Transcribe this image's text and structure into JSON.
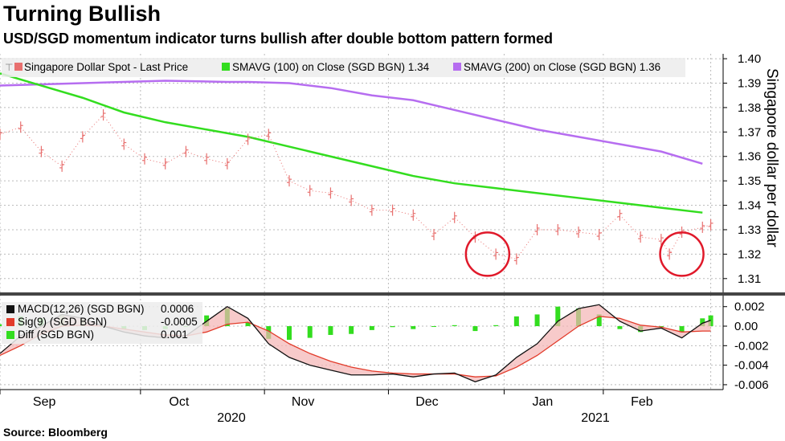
{
  "title": "Turning Bullish",
  "subtitle": "USD/SGD momentum indicator turns bullish after double bottom pattern formed",
  "source": "Source: Bloomberg",
  "colors": {
    "price": "#e8706f",
    "sma100": "#33dd1f",
    "sma200": "#b66df0",
    "macd": "#111111",
    "signal": "#e23b2a",
    "diff": "#33dd1f",
    "circle": "#e0192a"
  },
  "chart_data": [
    {
      "type": "line",
      "panel": "price",
      "ylabel": "Singapore dollar per dollar",
      "ylim": [
        1.305,
        1.402
      ],
      "yticks": [
        "1.40",
        "1.39",
        "1.38",
        "1.37",
        "1.36",
        "1.35",
        "1.34",
        "1.33",
        "1.32",
        "1.31"
      ],
      "xlim": [
        0,
        175
      ],
      "legend": [
        "Singapore Dollar Spot - Last Price",
        "SMAVG (100)  on Close (SGD BGN) 1.34",
        "SMAVG (200)  on Close (SGD BGN) 1.36"
      ],
      "series": [
        {
          "name": "Singapore Dollar Spot - Last Price",
          "style": "ohlc",
          "x": [
            0,
            5,
            10,
            15,
            20,
            25,
            30,
            35,
            40,
            45,
            50,
            55,
            60,
            65,
            70,
            75,
            80,
            85,
            90,
            95,
            100,
            105,
            110,
            115,
            120,
            125,
            130,
            135,
            140,
            145,
            150,
            155,
            160,
            162,
            165,
            170,
            172
          ],
          "y": [
            1.369,
            1.372,
            1.362,
            1.356,
            1.368,
            1.377,
            1.365,
            1.359,
            1.357,
            1.362,
            1.359,
            1.357,
            1.367,
            1.369,
            1.35,
            1.346,
            1.345,
            1.342,
            1.338,
            1.338,
            1.336,
            1.328,
            1.335,
            1.327,
            1.32,
            1.318,
            1.33,
            1.33,
            1.329,
            1.328,
            1.336,
            1.327,
            1.326,
            1.32,
            1.329,
            1.331,
            1.332
          ]
        },
        {
          "name": "SMAVG (100)  on Close (SGD BGN) 1.34",
          "style": "line",
          "x": [
            0,
            10,
            20,
            30,
            40,
            50,
            60,
            70,
            80,
            90,
            100,
            110,
            120,
            130,
            140,
            150,
            160,
            170
          ],
          "y": [
            1.394,
            1.389,
            1.384,
            1.378,
            1.374,
            1.371,
            1.368,
            1.364,
            1.36,
            1.356,
            1.352,
            1.349,
            1.347,
            1.345,
            1.343,
            1.341,
            1.339,
            1.337
          ]
        },
        {
          "name": "SMAVG (200)  on Close (SGD BGN) 1.36",
          "style": "line",
          "x": [
            0,
            20,
            40,
            55,
            60,
            70,
            80,
            90,
            100,
            110,
            120,
            130,
            140,
            150,
            160,
            170
          ],
          "y": [
            1.389,
            1.39,
            1.391,
            1.3905,
            1.3905,
            1.39,
            1.388,
            1.385,
            1.383,
            1.379,
            1.375,
            1.371,
            1.368,
            1.365,
            1.362,
            1.357
          ]
        }
      ],
      "annotations": [
        {
          "type": "circle",
          "x": 118,
          "y": 1.32
        },
        {
          "type": "circle",
          "x": 165,
          "y": 1.32
        }
      ]
    },
    {
      "type": "line",
      "panel": "macd",
      "ylim": [
        -0.0065,
        0.0028
      ],
      "yticks": [
        "0.002",
        "0.00",
        "-0.002",
        "-0.004",
        "-0.006"
      ],
      "x_tick_labels": [
        "Sep",
        "Oct",
        "Nov",
        "Dec",
        "Jan",
        "Feb"
      ],
      "x_year_labels": [
        "2020",
        "2021"
      ],
      "legend": [
        {
          "name": "MACD(12,26) (SGD BGN)",
          "value": "0.0006"
        },
        {
          "name": "Sig(9) (SGD BGN)",
          "value": "-0.0005"
        },
        {
          "name": "Diff (SGD BGN)",
          "value": "0.001"
        }
      ],
      "series": [
        {
          "name": "MACD(12,26) (SGD BGN)",
          "x": [
            0,
            5,
            10,
            15,
            20,
            25,
            30,
            35,
            40,
            45,
            50,
            55,
            60,
            65,
            70,
            75,
            80,
            85,
            90,
            95,
            100,
            105,
            110,
            115,
            120,
            125,
            130,
            135,
            140,
            145,
            150,
            155,
            160,
            165,
            170,
            172
          ],
          "y": [
            -0.0028,
            -0.001,
            0.0,
            0.0012,
            0.0008,
            0.0,
            -0.0006,
            -0.001,
            -0.0012,
            -0.001,
            0.0005,
            0.002,
            0.0008,
            -0.0018,
            -0.0032,
            -0.004,
            -0.0045,
            -0.005,
            -0.005,
            -0.0049,
            -0.0052,
            -0.0049,
            -0.0048,
            -0.0057,
            -0.005,
            -0.0032,
            -0.0018,
            0.0005,
            0.0018,
            0.0022,
            0.0005,
            -0.0005,
            -0.0002,
            -0.0012,
            0.0003,
            0.0006
          ]
        },
        {
          "name": "Sig(9) (SGD BGN)",
          "x": [
            0,
            5,
            10,
            15,
            20,
            25,
            30,
            35,
            40,
            45,
            50,
            55,
            60,
            65,
            70,
            75,
            80,
            85,
            90,
            95,
            100,
            105,
            110,
            115,
            120,
            125,
            130,
            135,
            140,
            145,
            150,
            155,
            160,
            165,
            170,
            172
          ],
          "y": [
            -0.003,
            -0.002,
            -0.0008,
            0.0,
            0.0001,
            0.0,
            -0.0003,
            -0.0006,
            -0.0009,
            -0.001,
            -0.0006,
            0.0002,
            0.0004,
            -0.0005,
            -0.0018,
            -0.0028,
            -0.0036,
            -0.0042,
            -0.0046,
            -0.0048,
            -0.0049,
            -0.0049,
            -0.0049,
            -0.0052,
            -0.0051,
            -0.0042,
            -0.003,
            -0.0015,
            0.0,
            0.001,
            0.0008,
            0.0001,
            -0.0001,
            -0.0006,
            -0.0005,
            -0.0005
          ]
        },
        {
          "name": "Diff (SGD BGN)",
          "style": "histogram",
          "x": [
            0,
            5,
            10,
            15,
            20,
            25,
            30,
            35,
            40,
            45,
            50,
            55,
            60,
            65,
            70,
            75,
            80,
            85,
            90,
            95,
            100,
            105,
            110,
            115,
            120,
            125,
            130,
            135,
            140,
            145,
            150,
            155,
            160,
            165,
            170,
            172
          ],
          "y": [
            0.0002,
            0.001,
            0.0008,
            0.0012,
            0.0007,
            0.0,
            -0.0003,
            -0.0004,
            -0.0003,
            0.0,
            0.0011,
            0.0018,
            0.0004,
            -0.0013,
            -0.0014,
            -0.0012,
            -0.0009,
            -0.0008,
            -0.0004,
            -0.0001,
            -0.0003,
            0.0,
            0.0001,
            -0.0005,
            0.0001,
            0.001,
            0.0012,
            0.002,
            0.0018,
            0.0012,
            -0.0003,
            -0.0006,
            -0.0001,
            -0.0006,
            0.0008,
            0.0011
          ]
        }
      ]
    }
  ]
}
